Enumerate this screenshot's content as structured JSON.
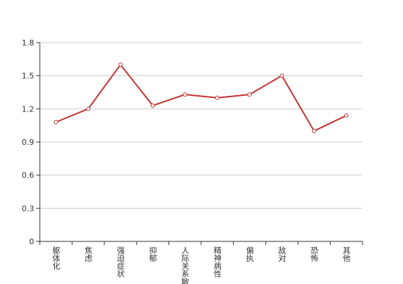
{
  "chart_data": {
    "type": "line",
    "categories": [
      "躯体化",
      "焦虑",
      "强迫症状",
      "抑郁",
      "人际关系敏感",
      "精神病性",
      "偏执",
      "敌对",
      "恐怖",
      "其他"
    ],
    "values": [
      1.08,
      1.2,
      1.6,
      1.23,
      1.33,
      1.3,
      1.33,
      1.5,
      1.0,
      1.14
    ],
    "color": "#c23531",
    "ylim": [
      0,
      1.8
    ],
    "yticks": [
      0,
      0.3,
      0.6,
      0.9,
      1.2,
      1.5,
      1.8
    ],
    "grid": true
  }
}
